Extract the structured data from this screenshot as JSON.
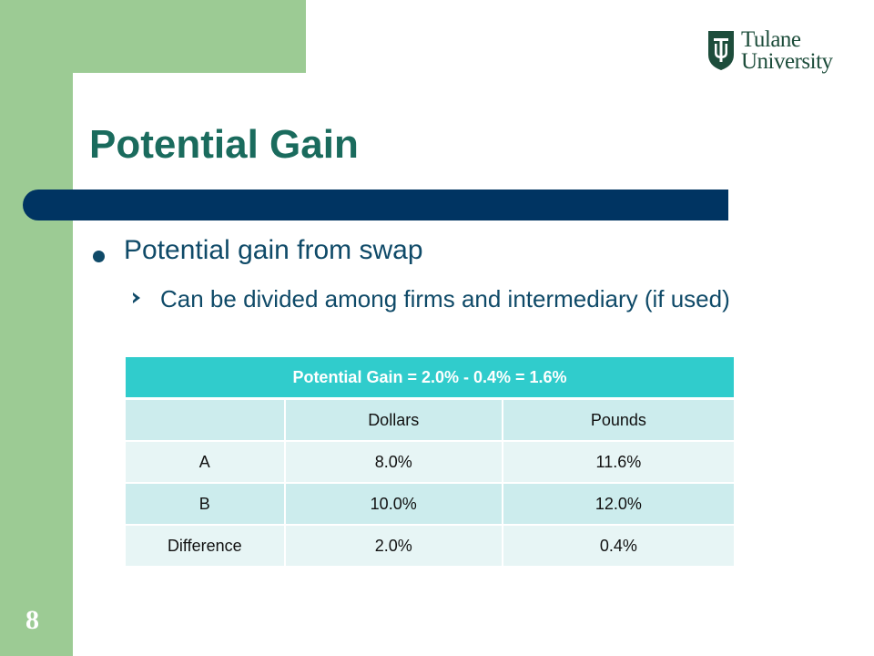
{
  "slide": {
    "title": "Potential Gain",
    "bullets": [
      {
        "text": "Potential gain from swap",
        "sub": "Can be divided among firms and intermediary (if used)"
      }
    ],
    "page_number": "8"
  },
  "logo": {
    "line1": "Tulane",
    "line2": "University",
    "color": "#1d4d3b"
  },
  "table": {
    "header": "Potential Gain = 2.0% - 0.4% = 1.6%",
    "columns": [
      "",
      "Dollars",
      "Pounds"
    ],
    "rows": [
      [
        "A",
        "8.0%",
        "11.6%"
      ],
      [
        "B",
        "10.0%",
        "12.0%"
      ],
      [
        "Difference",
        "2.0%",
        "0.4%"
      ]
    ]
  },
  "colors": {
    "frame_green": "#9ccb94",
    "title_teal": "#1a6b5d",
    "bar_navy": "#003462",
    "table_header": "#30cccc"
  }
}
